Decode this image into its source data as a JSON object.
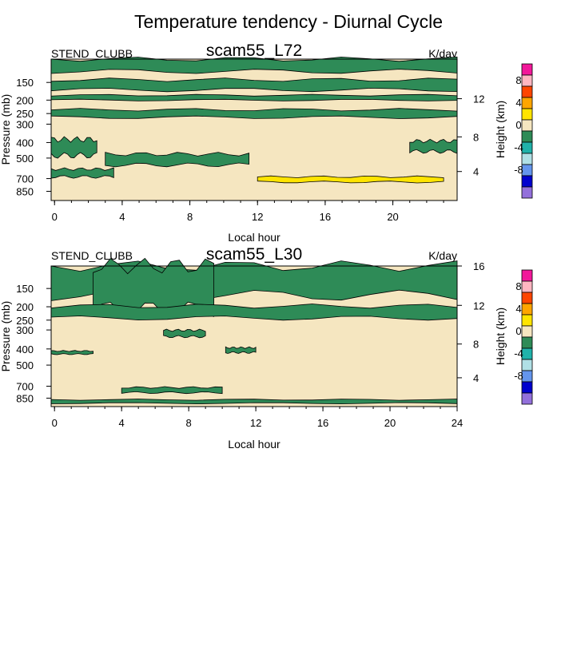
{
  "figure_title": "Temperature tendency - Diurnal Cycle",
  "colorbar": {
    "labels": [
      "8",
      "4",
      "0",
      "-4",
      "-8"
    ],
    "colors": [
      "#f2189a",
      "#ffb6c1",
      "#ff4500",
      "#ffa500",
      "#ffe400",
      "#f5e6c0",
      "#2e8b57",
      "#20b2aa",
      "#b0e0e6",
      "#6495ed",
      "#0000cd",
      "#9370db"
    ]
  },
  "palette": {
    "background": "#f5e6c0",
    "green": "#2e8b57",
    "yellow": "#ffe400"
  },
  "chart_data": [
    {
      "type": "contour",
      "title": "scam55_L72",
      "left_label": "STEND_CLUBB",
      "units": "K/day",
      "xlabel": "Local hour",
      "ylabel": "Pressure (mb)",
      "right_ylabel": "Height (km)",
      "xlim": [
        -0.2,
        23.8
      ],
      "x_ticks": [
        "0",
        "4",
        "8",
        "12",
        "16",
        "20"
      ],
      "pressure_ticks": [
        "150",
        "200",
        "250",
        "300",
        "400",
        "500",
        "700",
        "850"
      ],
      "height_ticks": [
        "12",
        "8",
        "4"
      ],
      "green_regions": [
        {
          "name": "top-layer",
          "x_from": -0.2,
          "x_to": 23.8,
          "p_from": 100,
          "p_to": 122
        },
        {
          "name": "upper-band",
          "x_from": -0.2,
          "x_to": 23.8,
          "p_from": 140,
          "p_to": 165
        },
        {
          "name": "upper-band-2",
          "x_from": -0.2,
          "x_to": 23.8,
          "p_from": 180,
          "p_to": 195
        },
        {
          "name": "jet-level-band",
          "x_from": -0.2,
          "x_to": 23.8,
          "p_from": 228,
          "p_to": 258
        },
        {
          "name": "mid-blob-left",
          "x_from": -0.2,
          "x_to": 2.5,
          "p_from": 370,
          "p_to": 480
        },
        {
          "name": "mid-band",
          "x_from": 3.0,
          "x_to": 11.5,
          "p_from": 470,
          "p_to": 560
        },
        {
          "name": "lower-streak",
          "x_from": -0.2,
          "x_to": 3.5,
          "p_from": 600,
          "p_to": 680
        },
        {
          "name": "right-blob",
          "x_from": 21.0,
          "x_to": 23.8,
          "p_from": 380,
          "p_to": 450
        }
      ],
      "yellow_regions": [
        {
          "name": "pbl-top-warming",
          "x_from": 12.0,
          "x_to": 23.0,
          "p_from": 680,
          "p_to": 740
        }
      ]
    },
    {
      "type": "contour",
      "title": "scam55_L30",
      "left_label": "STEND_CLUBB",
      "units": "K/day",
      "xlabel": "Local hour",
      "ylabel": "Pressure (mb)",
      "right_ylabel": "Height (km)",
      "xlim": [
        -0.2,
        24
      ],
      "x_ticks": [
        "0",
        "4",
        "8",
        "12",
        "16",
        "20",
        "24"
      ],
      "pressure_ticks": [
        "150",
        "200",
        "250",
        "300",
        "400",
        "500",
        "700",
        "850"
      ],
      "height_ticks": [
        "16",
        "12",
        "8",
        "4"
      ],
      "green_regions": [
        {
          "name": "upper-layer",
          "x_from": -0.2,
          "x_to": 24,
          "p_from": 100,
          "p_to": 160
        },
        {
          "name": "daytime-deep",
          "x_from": 2.3,
          "x_to": 9.5,
          "p_from": 100,
          "p_to": 200
        },
        {
          "name": "band-200",
          "x_from": -0.2,
          "x_to": 24,
          "p_from": 190,
          "p_to": 230
        },
        {
          "name": "mid-blob-290",
          "x_from": 6.5,
          "x_to": 9.0,
          "p_from": 280,
          "p_to": 310
        },
        {
          "name": "level-400",
          "x_from": -0.2,
          "x_to": 2.3,
          "p_from": 390,
          "p_to": 410
        },
        {
          "name": "level-400b",
          "x_from": 10.2,
          "x_to": 12.0,
          "p_from": 370,
          "p_to": 400
        },
        {
          "name": "near-surface",
          "x_from": -0.2,
          "x_to": 24,
          "p_from": 850,
          "p_to": 900
        },
        {
          "name": "low-blob-720",
          "x_from": 4.0,
          "x_to": 10.0,
          "p_from": 700,
          "p_to": 760
        }
      ],
      "yellow_regions": []
    }
  ]
}
